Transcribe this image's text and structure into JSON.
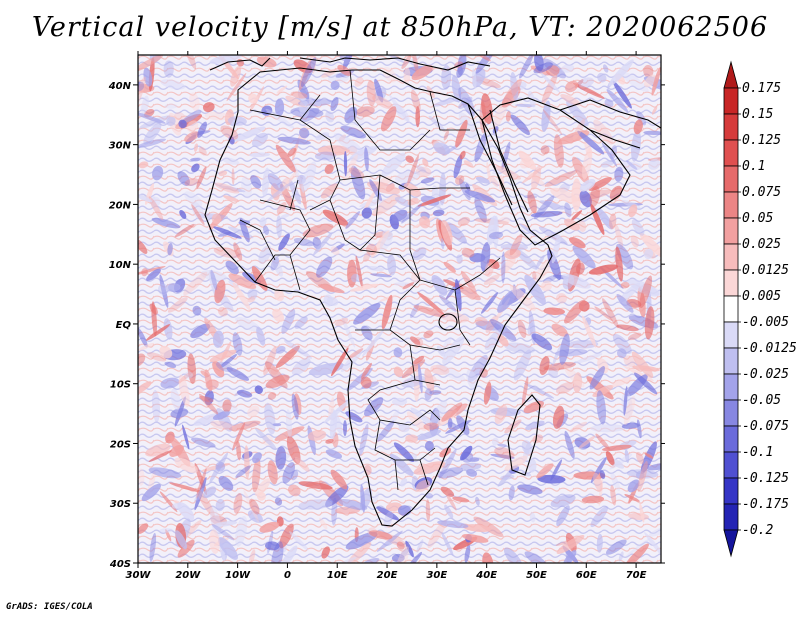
{
  "title": "Vertical velocity [m/s] at 850hPa, VT: 2020062506",
  "footer": "GrADS: IGES/COLA",
  "map": {
    "lon_range": [
      -30,
      75
    ],
    "lat_range": [
      -40,
      45
    ],
    "lon_ticks": [
      {
        "value": -30,
        "label": "30W"
      },
      {
        "value": -20,
        "label": "20W"
      },
      {
        "value": -10,
        "label": "10W"
      },
      {
        "value": 0,
        "label": "0"
      },
      {
        "value": 10,
        "label": "10E"
      },
      {
        "value": 20,
        "label": "20E"
      },
      {
        "value": 30,
        "label": "30E"
      },
      {
        "value": 40,
        "label": "40E"
      },
      {
        "value": 50,
        "label": "50E"
      },
      {
        "value": 60,
        "label": "60E"
      },
      {
        "value": 70,
        "label": "70E"
      }
    ],
    "lat_ticks": [
      {
        "value": 40,
        "label": "40N"
      },
      {
        "value": 30,
        "label": "30N"
      },
      {
        "value": 20,
        "label": "20N"
      },
      {
        "value": 10,
        "label": "10N"
      },
      {
        "value": 0,
        "label": "EQ"
      },
      {
        "value": -10,
        "label": "10S"
      },
      {
        "value": -20,
        "label": "20S"
      },
      {
        "value": -30,
        "label": "30S"
      },
      {
        "value": -40,
        "label": "40S"
      }
    ]
  },
  "colorbar": {
    "boundaries": [
      "0.175",
      "0.15",
      "0.125",
      "0.1",
      "0.075",
      "0.05",
      "0.025",
      "0.0125",
      "0.005",
      "-0.005",
      "-0.0125",
      "-0.025",
      "-0.05",
      "-0.075",
      "-0.1",
      "-0.125",
      "-0.175",
      "-0.2"
    ],
    "colors": [
      "#b01a1a",
      "#c82626",
      "#d63b3b",
      "#e05050",
      "#e66a6a",
      "#ec8585",
      "#f2a0a0",
      "#f7bcbc",
      "#fbd7d7",
      "#ffffff",
      "#dadaf7",
      "#bfbff0",
      "#a3a3ea",
      "#8787e2",
      "#6b6bdb",
      "#5050d2",
      "#3535c6",
      "#2424b4",
      "#14149c"
    ]
  }
}
